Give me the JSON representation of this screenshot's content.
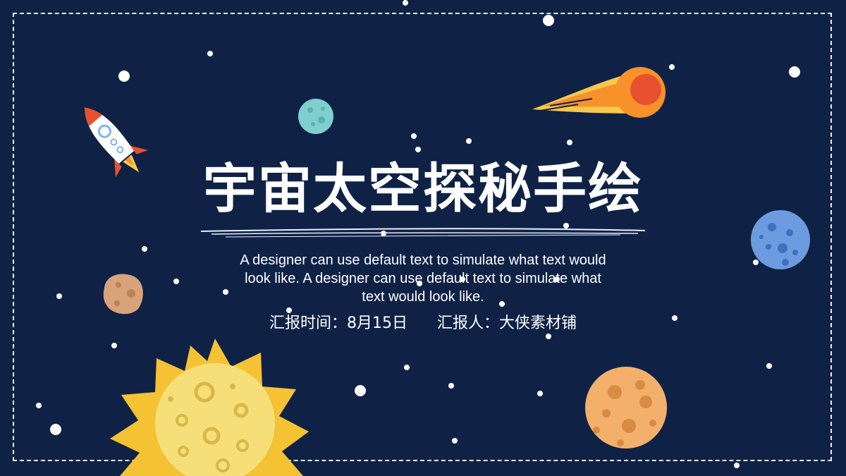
{
  "slide": {
    "title": "宇宙太空探秘手绘",
    "subtitle": "A designer can use default text to simulate what text would look like. A designer can use default text to simulate what text would look like.",
    "report_time_label": "汇报时间：",
    "report_time_value": "8月15日",
    "reporter_label": "汇报人：",
    "reporter_value": "大侠素材铺"
  },
  "colors": {
    "background": "#0f2246",
    "sun": "#f4c232",
    "moon": "#f6df79",
    "rocket_red": "#e8512f",
    "comet_orange": "#f7922a",
    "planet_blue": "#6c9be0",
    "planet_teal": "#7fcfcf",
    "planet_peach": "#f2b06b",
    "asteroid": "#d8a37a"
  }
}
